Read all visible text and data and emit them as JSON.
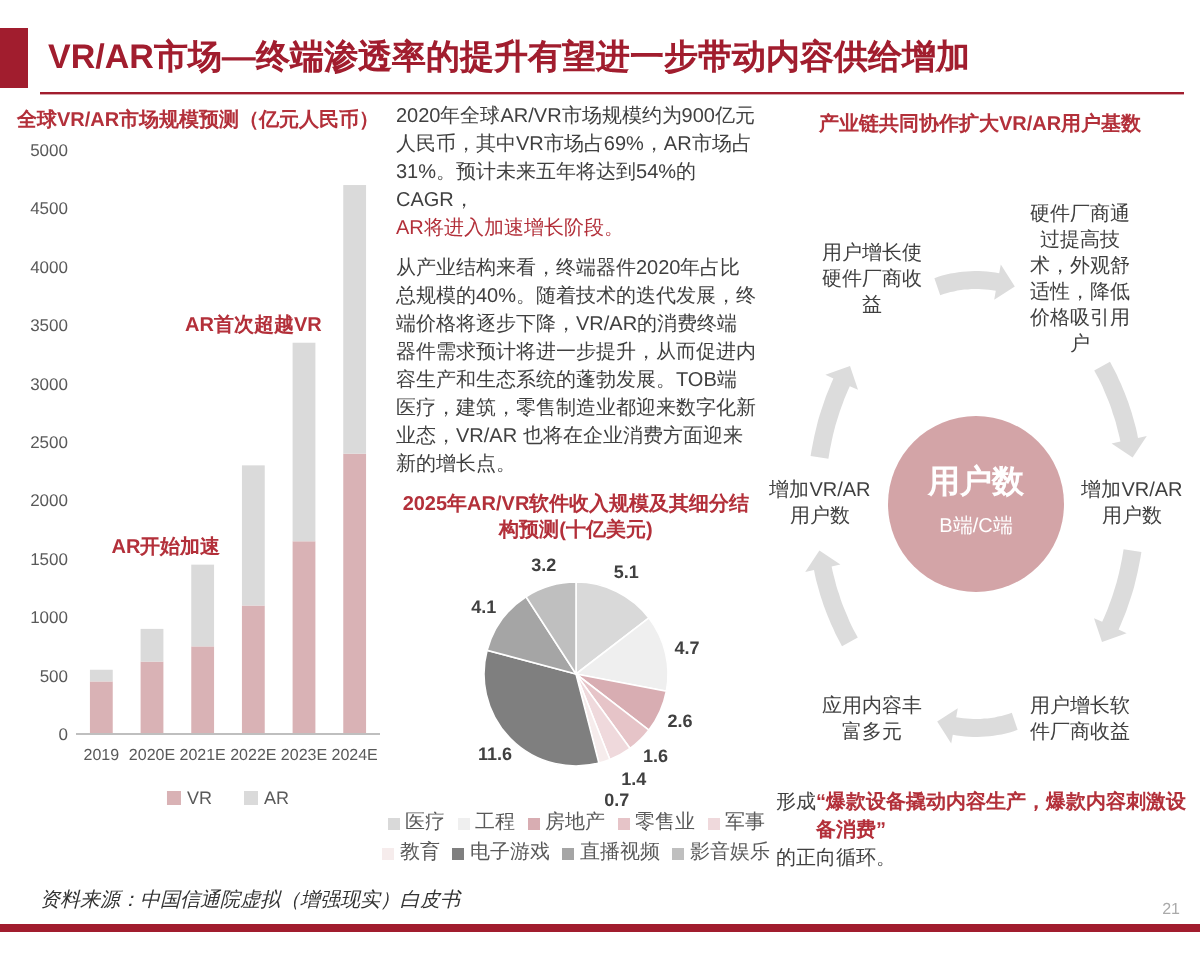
{
  "chart_data": [
    {
      "type": "other",
      "title": "VR/AR市场—终端渗透率的提升有望进一步带动内容供给增加",
      "annotations": [
        "资料来源：中国信通院虚拟（增强现实）白皮书",
        "21"
      ]
    },
    {
      "type": "bar",
      "title": "全球VR/AR市场规模预测（亿元人民币）",
      "categories": [
        "2019",
        "2020E",
        "2021E",
        "2022E",
        "2023E",
        "2024E"
      ],
      "series": [
        {
          "name": "VR",
          "color": "#d9b2b5",
          "values": [
            450,
            620,
            750,
            1100,
            1650,
            2400
          ]
        },
        {
          "name": "AR",
          "color": "#dadada",
          "values": [
            100,
            280,
            700,
            1200,
            1700,
            2300
          ]
        }
      ],
      "stacked": true,
      "ylim": [
        0,
        5000
      ],
      "yticks": [
        0,
        500,
        1000,
        1500,
        2000,
        2500,
        3000,
        3500,
        4000,
        4500,
        5000
      ],
      "legend": "bottom",
      "annotations": [
        {
          "text": "AR开始加速",
          "x": "2021E",
          "y": 1450
        },
        {
          "text": "AR首次超越VR",
          "x": "2023E",
          "y": 3350
        }
      ]
    },
    {
      "type": "other",
      "annotations": [
        "2020年全球AR/VR市场规模约为900亿元人民币，其中VR市场占69%，AR市场占31%。预计未来五年将达到54%的CAGR，",
        "AR将进入加速增长阶段。",
        "从产业结构来看，终端器件2020年占比总规模的40%。随着技术的迭代发展，终端价格将逐步下降，VR/AR的消费终端器件需求预计将进一步提升，从而促进内容生产和生态系统的蓬勃发展。TOB端医疗，建筑，零售制造业都迎来数字化新业态，VR/AR 也将在企业消费方面迎来新的增长点。"
      ]
    },
    {
      "type": "pie",
      "title": "2025年AR/VR软件收入规模及其细分结构预测(十亿美元)",
      "categories": [
        "医疗",
        "工程",
        "房地产",
        "零售业",
        "军事",
        "教育",
        "电子游戏",
        "直播视频",
        "影音娱乐"
      ],
      "values": [
        5.1,
        4.7,
        2.6,
        1.6,
        1.4,
        0.7,
        11.6,
        4.1,
        3.2
      ],
      "colors": [
        "#d9d9d9",
        "#efefef",
        "#d8adb2",
        "#e6c4c8",
        "#efd9dc",
        "#f6ecec",
        "#7f7f7f",
        "#a5a5a5",
        "#bfbfbf"
      ],
      "data_labels": true,
      "legend": "bottom"
    },
    {
      "type": "other",
      "title": "产业链共同协作扩大VR/AR用户基数",
      "annotations": [
        "用户增长使硬件厂商收益",
        "硬件厂商通过提高技术，外观舒适性，降低价格吸引用户",
        "增加VR/AR用户数",
        "用户增长软件厂商收益",
        "应用内容丰富多元",
        "增加VR/AR用户数",
        "用户数",
        "B端/C端",
        "形成",
        "“爆款设备撬动内容生产，爆款内容刺激设备消费”",
        "的正向循环。"
      ]
    }
  ]
}
